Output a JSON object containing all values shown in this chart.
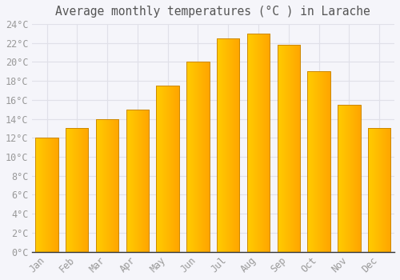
{
  "title": "Average monthly temperatures (°C ) in Larache",
  "months": [
    "Jan",
    "Feb",
    "Mar",
    "Apr",
    "May",
    "Jun",
    "Jul",
    "Aug",
    "Sep",
    "Oct",
    "Nov",
    "Dec"
  ],
  "values": [
    12.0,
    13.0,
    14.0,
    15.0,
    17.5,
    20.0,
    22.5,
    23.0,
    21.8,
    19.0,
    15.5,
    13.0
  ],
  "bar_color_left": "#FFCC00",
  "bar_color_right": "#FFA500",
  "bar_edge_color": "#CC8800",
  "background_color": "#f5f5fa",
  "plot_bg_color": "#f5f5fa",
  "grid_color": "#e0e0e8",
  "tick_label_color": "#999999",
  "title_color": "#555555",
  "axis_color": "#333333",
  "ylim": [
    0,
    24
  ],
  "ytick_step": 2,
  "title_fontsize": 10.5,
  "tick_fontsize": 8.5
}
